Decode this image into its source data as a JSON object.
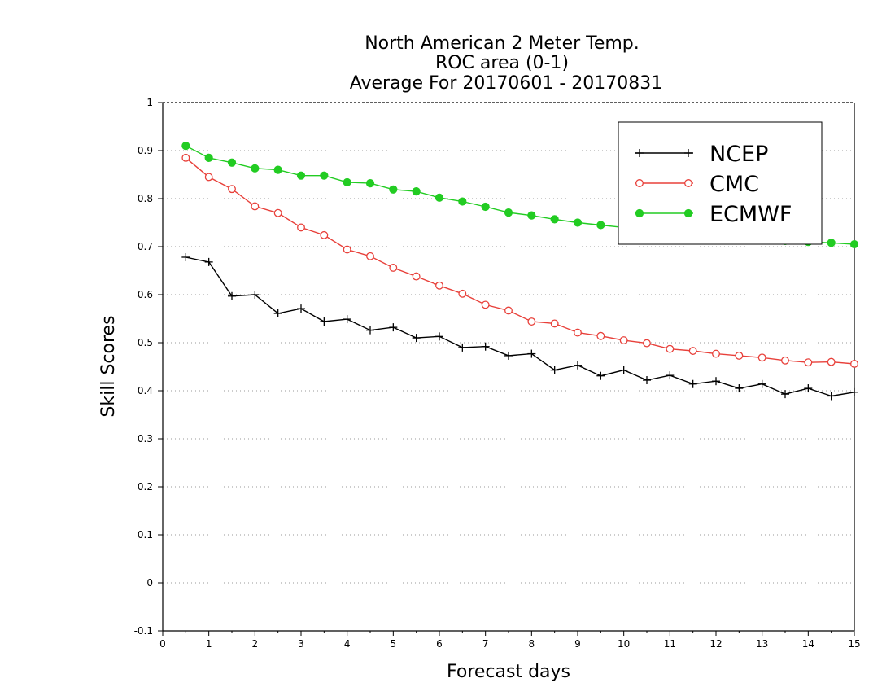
{
  "chart_data": {
    "type": "line",
    "title_lines": [
      "North American 2 Meter Temp.",
      "ROC area (0-1)",
      "Average For 20170601 - 20170831"
    ],
    "xlabel": "Forecast days",
    "ylabel": "Skill Scores",
    "xlim": [
      0,
      15
    ],
    "ylim": [
      -0.1,
      1
    ],
    "x_ticks": [
      0,
      1,
      2,
      3,
      4,
      5,
      6,
      7,
      8,
      9,
      10,
      11,
      12,
      13,
      14,
      15
    ],
    "y_ticks": [
      -0.1,
      0,
      0.1,
      0.2,
      0.3,
      0.4,
      0.5,
      0.6,
      0.7,
      0.8,
      0.9,
      1
    ],
    "y_tick_labels": [
      "-0.1",
      "0",
      "0.1",
      "0.2",
      "0.3",
      "0.4",
      "0.5",
      "0.6",
      "0.7",
      "0.8",
      "0.9",
      "1"
    ],
    "grid": "horizontal dotted",
    "legend_position": "top-right",
    "x": [
      0.5,
      1,
      1.5,
      2,
      2.5,
      3,
      3.5,
      4,
      4.5,
      5,
      5.5,
      6,
      6.5,
      7,
      7.5,
      8,
      8.5,
      9,
      9.5,
      10,
      10.5,
      11,
      11.5,
      12,
      12.5,
      13,
      13.5,
      14,
      14.5,
      15
    ],
    "series": [
      {
        "name": "NCEP",
        "color": "#000000",
        "marker": "plus",
        "values": [
          0.678,
          0.668,
          0.597,
          0.6,
          0.561,
          0.571,
          0.544,
          0.549,
          0.526,
          0.532,
          0.51,
          0.513,
          0.49,
          0.492,
          0.473,
          0.477,
          0.443,
          0.453,
          0.431,
          0.443,
          0.422,
          0.432,
          0.414,
          0.42,
          0.405,
          0.414,
          0.393,
          0.405,
          0.389,
          0.397
        ]
      },
      {
        "name": "CMC",
        "color": "#e8403a",
        "marker": "open-circle",
        "values": [
          0.885,
          0.845,
          0.82,
          0.784,
          0.77,
          0.74,
          0.724,
          0.694,
          0.68,
          0.656,
          0.638,
          0.619,
          0.602,
          0.579,
          0.567,
          0.544,
          0.54,
          0.521,
          0.514,
          0.505,
          0.499,
          0.487,
          0.483,
          0.477,
          0.473,
          0.469,
          0.463,
          0.459,
          0.46,
          0.456
        ]
      },
      {
        "name": "ECMWF",
        "color": "#22cc22",
        "marker": "filled-circle",
        "values": [
          0.91,
          0.885,
          0.875,
          0.863,
          0.86,
          0.848,
          0.848,
          0.834,
          0.832,
          0.819,
          0.815,
          0.802,
          0.794,
          0.783,
          0.771,
          0.765,
          0.757,
          0.75,
          0.745,
          0.74,
          0.736,
          0.731,
          0.727,
          0.723,
          0.719,
          0.715,
          0.712,
          0.71,
          0.708,
          0.705
        ]
      }
    ]
  }
}
